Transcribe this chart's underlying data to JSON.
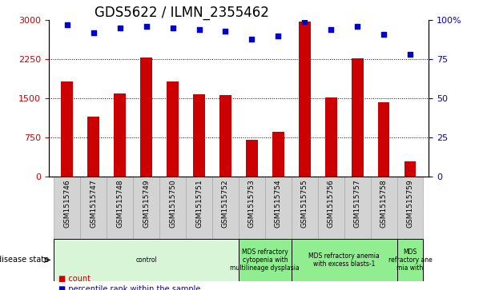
{
  "title": "GDS5622 / ILMN_2355462",
  "samples": [
    "GSM1515746",
    "GSM1515747",
    "GSM1515748",
    "GSM1515749",
    "GSM1515750",
    "GSM1515751",
    "GSM1515752",
    "GSM1515753",
    "GSM1515754",
    "GSM1515755",
    "GSM1515756",
    "GSM1515757",
    "GSM1515758",
    "GSM1515759"
  ],
  "counts": [
    1820,
    1150,
    1600,
    2280,
    1830,
    1580,
    1560,
    700,
    850,
    2980,
    1520,
    2270,
    1420,
    290
  ],
  "percentile_ranks": [
    97,
    92,
    95,
    96,
    95,
    94,
    93,
    88,
    90,
    99,
    94,
    96,
    91,
    78
  ],
  "disease_states": [
    {
      "label": "control",
      "start": 0,
      "end": 7,
      "color": "#d8f5d8"
    },
    {
      "label": "MDS refractory\ncytopenia with\nmultilineage dysplasia",
      "start": 7,
      "end": 9,
      "color": "#90ee90"
    },
    {
      "label": "MDS refractory anemia\nwith excess blasts-1",
      "start": 9,
      "end": 13,
      "color": "#90ee90"
    },
    {
      "label": "MDS\nrefractory ane\nmia with",
      "start": 13,
      "end": 14,
      "color": "#90ee90"
    }
  ],
  "bar_color": "#cc0000",
  "dot_color": "#0000cc",
  "ylim_left": [
    0,
    3000
  ],
  "ylim_right": [
    0,
    100
  ],
  "yticks_left": [
    0,
    750,
    1500,
    2250,
    3000
  ],
  "ytick_labels_left": [
    "0",
    "750",
    "1500",
    "2250",
    "3000"
  ],
  "yticks_right": [
    0,
    25,
    50,
    75,
    100
  ],
  "ytick_labels_right": [
    "0",
    "25",
    "50",
    "75",
    "100%"
  ],
  "grid_values": [
    750,
    1500,
    2250
  ],
  "title_fontsize": 12,
  "tick_fontsize": 8,
  "bar_width": 0.45,
  "background_color": "#ffffff",
  "sample_label_bg": "#d3d3d3",
  "sample_label_edge": "#aaaaaa"
}
